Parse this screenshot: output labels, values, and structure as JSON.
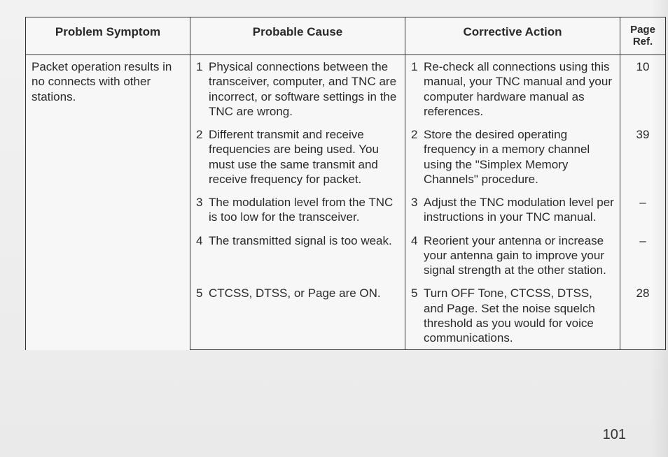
{
  "table": {
    "headers": {
      "symptom": "Problem Symptom",
      "cause": "Probable Cause",
      "action": "Corrective Action",
      "ref": "Page\nRef."
    },
    "symptom": "Packet operation results in no connects with other stations.",
    "rows": [
      {
        "n": "1",
        "cause": "Physical connections between the transceiver, computer, and TNC are incorrect, or software settings in the TNC are wrong.",
        "action": "Re-check all connections using this manual, your TNC manual and your computer hardware manual as references.",
        "ref": "10"
      },
      {
        "n": "2",
        "cause": "Different transmit and receive frequencies are being used.  You must use the same transmit and receive frequency for packet.",
        "action": "Store the desired operating frequency in a memory channel using the \"Simplex Memory Channels\" procedure.",
        "ref": "39"
      },
      {
        "n": "3",
        "cause": "The modulation level from the TNC is too low for the transceiver.",
        "action": "Adjust the TNC modulation level per instructions in your TNC manual.",
        "ref": "–"
      },
      {
        "n": "4",
        "cause": "The transmitted signal is too weak.",
        "action": "Reorient your antenna or increase your antenna gain to improve your signal strength at the other station.",
        "ref": "–"
      },
      {
        "n": "5",
        "cause": "CTCSS, DTSS, or Page are ON.",
        "action": "Turn OFF Tone, CTCSS, DTSS, and Page.  Set the noise squelch threshold as you would for voice communications.",
        "ref": "28"
      }
    ]
  },
  "page_number": "101",
  "style": {
    "border_color": "#333333",
    "text_color": "#2a2a2a",
    "bg_color": "#f2f2f2",
    "font_size_pt": 13
  }
}
